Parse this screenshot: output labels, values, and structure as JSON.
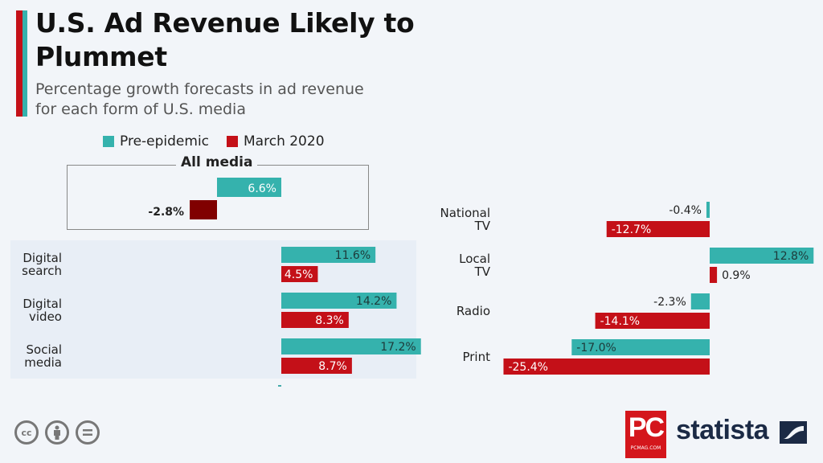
{
  "header": {
    "title_line1": "U.S. Ad Revenue Likely to",
    "title_line2": "Plummet",
    "subtitle_line1": "Percentage growth forecasts in ad revenue",
    "subtitle_line2": "for each form of U.S. media"
  },
  "colors": {
    "pre": "#35b2ad",
    "march": "#c41018",
    "march_dark": "#800000",
    "accent_red": "#c41018",
    "accent_teal": "#35b2ad"
  },
  "chart_data": {
    "type": "bar",
    "orientation": "horizontal",
    "title": "U.S. Ad Revenue Likely to Plummet",
    "subtitle": "Percentage growth forecasts in ad revenue for each form of U.S. media",
    "unit": "%",
    "legend": [
      "Pre-epidemic",
      "March 2020"
    ],
    "legend_position": "top",
    "all_media": {
      "label": "All media",
      "pre": 6.6,
      "march": -2.8,
      "pre_label": "6.6%",
      "march_label": "-2.8%"
    },
    "categories": [
      "Digital search",
      "Digital video",
      "Social media",
      "National TV",
      "Local TV",
      "Radio",
      "Print"
    ],
    "series": [
      {
        "name": "Pre-epidemic",
        "values": [
          11.6,
          14.2,
          17.2,
          -0.4,
          12.8,
          -2.3,
          -17.0
        ],
        "labels": [
          "11.6%",
          "14.2%",
          "17.2%",
          "-0.4%",
          "12.8%",
          "-2.3%",
          "-17.0%"
        ]
      },
      {
        "name": "March 2020",
        "values": [
          4.5,
          8.3,
          8.7,
          -12.7,
          0.9,
          -14.1,
          -25.4
        ],
        "labels": [
          "4.5%",
          "8.3%",
          "8.7%",
          "-12.7%",
          "0.9%",
          "-14.1%",
          "-25.4%"
        ]
      }
    ],
    "groups": {
      "digital": [
        "Digital search",
        "Digital video",
        "Social media"
      ],
      "traditional": [
        "National TV",
        "Local TV",
        "Radio",
        "Print"
      ]
    },
    "cat_lines": [
      [
        "Digital",
        "search"
      ],
      [
        "Digital",
        "video"
      ],
      [
        "Social",
        "media"
      ],
      [
        "National",
        "TV"
      ],
      [
        "Local",
        "TV"
      ],
      [
        "Radio"
      ],
      [
        "Print"
      ]
    ]
  },
  "footer": {
    "cc_icons": [
      "cc-icon",
      "by-icon",
      "nd-icon"
    ],
    "pc_logo": "PC",
    "pc_domain": "PCMAG.COM",
    "brand": "statista"
  }
}
